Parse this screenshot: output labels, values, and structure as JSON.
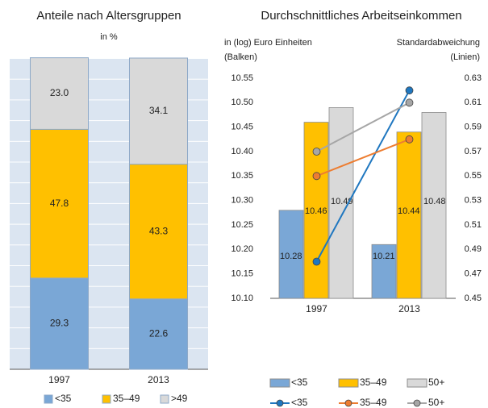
{
  "chart_data": [
    {
      "type": "stacked_bar",
      "title": "Anteile nach Altersgruppen",
      "subtitle": "in %",
      "categories": [
        "1997",
        "2013"
      ],
      "ylim": [
        0,
        100
      ],
      "series": [
        {
          "name": "<35",
          "color": "#7aa7d6",
          "label_color": "#1f6fc0",
          "values": [
            29.3,
            22.6
          ]
        },
        {
          "name": "35–49",
          "color": "#ffc000",
          "label_color": "#c00000",
          "values": [
            47.8,
            43.3
          ]
        },
        {
          "name": ">49",
          "color": "#d9d9d9",
          "label_color": "#333333",
          "values": [
            23.0,
            34.1
          ],
          "value_labels": [
            "23.0",
            "34.1"
          ]
        }
      ]
    },
    {
      "type": "combo",
      "title": "Durchschnittliches Arbeitseinkommen",
      "ylabel": [
        "in (log) Euro Einheiten",
        "(Balken)"
      ],
      "y2label": [
        "Standardabweichung",
        "(Linien)"
      ],
      "categories": [
        "1997",
        "2013"
      ],
      "ylim": [
        10.1,
        10.55
      ],
      "yticks": [
        {
          "value": 10.1,
          "label": "10.10"
        },
        10.15,
        {
          "value": 10.2,
          "label": "10.20"
        },
        10.25,
        {
          "value": 10.3,
          "label": "10.30"
        },
        10.35,
        {
          "value": 10.4,
          "label": "10.40"
        },
        10.45,
        {
          "value": 10.5,
          "label": "10.50"
        },
        10.55
      ],
      "y2lim": [
        0.45,
        0.63
      ],
      "y2ticks": [
        0.45,
        0.47,
        0.49,
        0.51,
        0.53,
        0.55,
        0.57,
        0.59,
        0.61,
        0.63
      ],
      "series": [
        {
          "name": "<35",
          "color": "#7aa7d6",
          "label_color": "#1f6fc0",
          "values": [
            10.28,
            10.21
          ]
        },
        {
          "name": "35–49",
          "color": "#ffc000",
          "label_color": "#c00000",
          "values": [
            10.46,
            10.44
          ]
        },
        {
          "name": "50+",
          "color": "#d9d9d9",
          "label_color": "#333333",
          "values": [
            10.49,
            10.48
          ]
        }
      ],
      "line_series": [
        {
          "name": "<35",
          "color": "#1f77c0",
          "axis": "y2",
          "values": [
            0.48,
            0.62
          ]
        },
        {
          "name": "35–49",
          "color": "#ed7d31",
          "axis": "y2",
          "values": [
            0.55,
            0.58
          ]
        },
        {
          "name": "50+",
          "color": "#a6a6a6",
          "axis": "y2",
          "values": [
            0.57,
            0.61
          ]
        }
      ]
    }
  ]
}
